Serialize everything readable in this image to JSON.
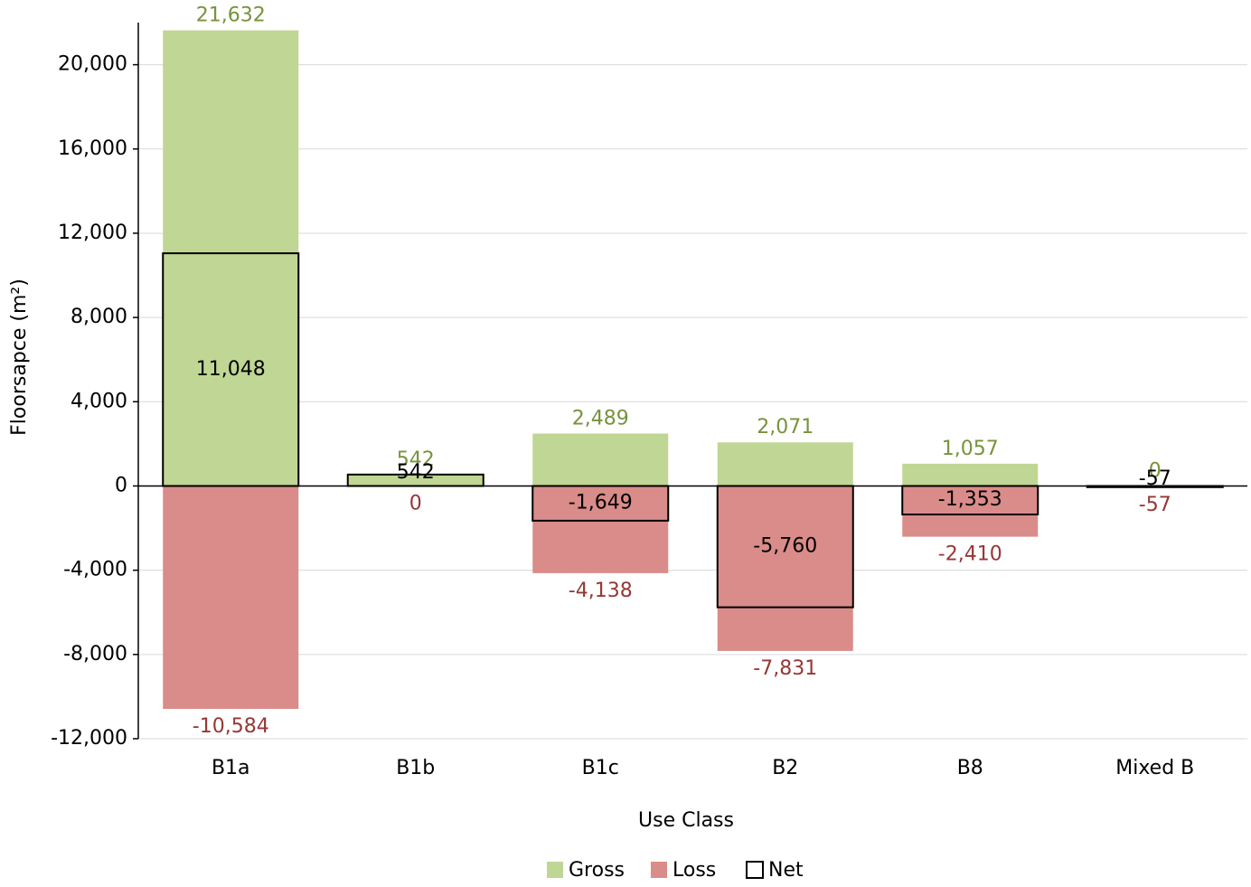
{
  "chart_data": {
    "type": "bar",
    "x_label": "Use Class",
    "y_label": "Floorsapce (m²)",
    "categories": [
      "B1a",
      "B1b",
      "B1c",
      "B2",
      "B8",
      "Mixed B"
    ],
    "series": [
      {
        "name": "Gross",
        "color": "#c0d694",
        "label_color": "#77933c",
        "outline": false,
        "values": [
          21632,
          542,
          2489,
          2071,
          1057,
          0
        ],
        "value_labels": [
          "21,632",
          "542",
          "2,489",
          "2,071",
          "1,057",
          "0"
        ]
      },
      {
        "name": "Loss",
        "color": "#d98c89",
        "label_color": "#953735",
        "outline": false,
        "values": [
          -10584,
          0,
          -4138,
          -7831,
          -2410,
          -57
        ],
        "value_labels": [
          "-10,584",
          "0",
          "-4,138",
          "-7,831",
          "-2,410",
          "-57"
        ]
      },
      {
        "name": "Net",
        "color": "#000000",
        "label_color": "#000000",
        "outline": true,
        "values": [
          11048,
          542,
          -1649,
          -5760,
          -1353,
          -57
        ],
        "value_labels": [
          "11,048",
          "542",
          "-1,649",
          "-5,760",
          "-1,353",
          "-57"
        ]
      }
    ],
    "ylim": [
      -12000,
      22000
    ],
    "yticks": [
      {
        "value": -12000,
        "label": "-12,000"
      },
      {
        "value": -8000,
        "label": "-8,000"
      },
      {
        "value": -4000,
        "label": "-4,000"
      },
      0,
      {
        "value": 4000,
        "label": "4,000"
      },
      {
        "value": 8000,
        "label": "8,000"
      },
      {
        "value": 12000,
        "label": "12,000"
      },
      {
        "value": 16000,
        "label": "16,000"
      },
      {
        "value": 20000,
        "label": "20,000"
      }
    ],
    "grid": true,
    "legend": "bottom"
  }
}
